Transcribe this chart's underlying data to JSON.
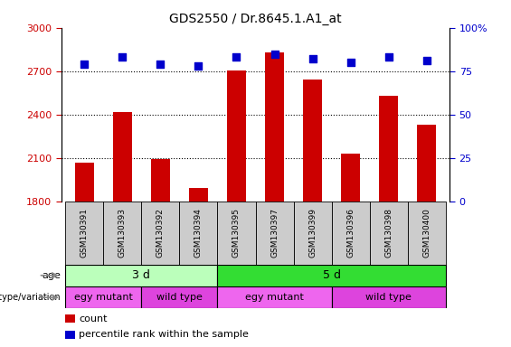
{
  "title": "GDS2550 / Dr.8645.1.A1_at",
  "samples": [
    "GSM130391",
    "GSM130393",
    "GSM130392",
    "GSM130394",
    "GSM130395",
    "GSM130397",
    "GSM130399",
    "GSM130396",
    "GSM130398",
    "GSM130400"
  ],
  "counts": [
    2065,
    2415,
    2095,
    1895,
    2705,
    2830,
    2640,
    2130,
    2530,
    2330
  ],
  "percentiles": [
    79,
    83,
    79,
    78,
    83,
    85,
    82,
    80,
    83,
    81
  ],
  "left_ylim": [
    1800,
    3000
  ],
  "right_ylim": [
    0,
    100
  ],
  "left_yticks": [
    1800,
    2100,
    2400,
    2700,
    3000
  ],
  "right_yticks": [
    0,
    25,
    50,
    75,
    100
  ],
  "right_yticklabels": [
    "0",
    "25",
    "50",
    "75",
    "100%"
  ],
  "bar_color": "#cc0000",
  "dot_color": "#0000cc",
  "bar_baseline": 1800,
  "age_labels": [
    {
      "label": "3 d",
      "start": 0,
      "end": 4,
      "color": "#bbffbb"
    },
    {
      "label": "5 d",
      "start": 4,
      "end": 10,
      "color": "#33dd33"
    }
  ],
  "genotype_labels": [
    {
      "label": "egy mutant",
      "start": 0,
      "end": 2,
      "color": "#ee66ee"
    },
    {
      "label": "wild type",
      "start": 2,
      "end": 4,
      "color": "#dd44dd"
    },
    {
      "label": "egy mutant",
      "start": 4,
      "end": 7,
      "color": "#ee66ee"
    },
    {
      "label": "wild type",
      "start": 7,
      "end": 10,
      "color": "#dd44dd"
    }
  ],
  "tick_label_color_left": "#cc0000",
  "tick_label_color_right": "#0000cc",
  "xtick_bg_color": "#cccccc",
  "bar_width": 0.5,
  "legend_items": [
    {
      "label": "count",
      "color": "#cc0000"
    },
    {
      "label": "percentile rank within the sample",
      "color": "#0000cc"
    }
  ]
}
